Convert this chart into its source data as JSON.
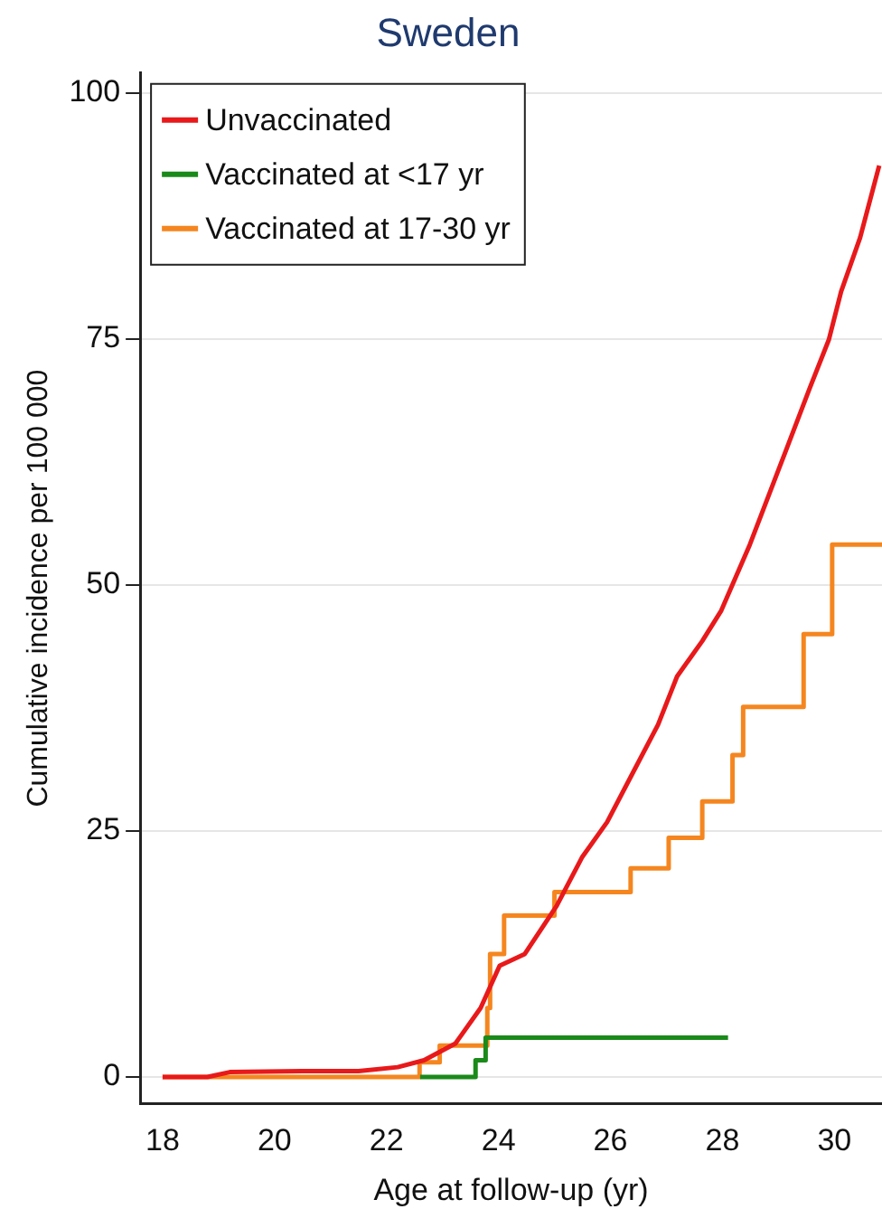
{
  "chart_data": {
    "type": "line",
    "title": "Sweden",
    "xlabel": "Age at follow-up (yr)",
    "ylabel": "Cumulative incidence per 100 000",
    "xlim": [
      17.6,
      30.85
    ],
    "xticks": [
      18,
      20,
      22,
      24,
      26,
      28,
      30
    ],
    "ylim": [
      -2.7,
      102
    ],
    "yticks": [
      0,
      25,
      50,
      75,
      100
    ],
    "grid": "y",
    "legend": "top left",
    "marker": "none",
    "line_style": "solid",
    "series": [
      {
        "name": "Unvaccinated",
        "color": "#e8191b",
        "x": [
          18.0,
          18.8,
          19.2,
          20.5,
          21.5,
          22.2,
          22.67,
          23.23,
          23.68,
          24.02,
          24.47,
          25.04,
          25.49,
          25.94,
          26.39,
          26.85,
          27.19,
          27.64,
          27.98,
          28.49,
          29.11,
          29.56,
          29.9,
          30.12,
          30.46,
          30.8
        ],
        "values": [
          0,
          0,
          0.5,
          0.6,
          0.6,
          1.0,
          1.7,
          3.4,
          7.0,
          11.3,
          12.5,
          17.4,
          22.3,
          25.9,
          30.8,
          35.8,
          40.7,
          44.3,
          47.4,
          54.1,
          63.3,
          70.0,
          74.9,
          79.8,
          85.3,
          92.6
        ]
      },
      {
        "name": "Vaccinated at <17 yr",
        "color": "#1a8a1a",
        "type": "step",
        "x": [
          22.6,
          23.59,
          23.77,
          28.1
        ],
        "values": [
          0,
          1.7,
          4.0,
          4.0
        ]
      },
      {
        "name": "Vaccinated at 17-30 yr",
        "color": "#f5861f",
        "type": "step",
        "x": [
          18,
          22.59,
          22.95,
          23.8,
          23.85,
          24.1,
          25.0,
          26.36,
          27.04,
          27.64,
          28.18,
          28.37,
          29.45,
          29.96,
          30.85
        ],
        "values": [
          0,
          1.5,
          3.2,
          7.0,
          12.5,
          16.4,
          18.8,
          21.2,
          24.3,
          28.0,
          32.7,
          37.6,
          45.0,
          54.1,
          54.1
        ]
      }
    ]
  }
}
